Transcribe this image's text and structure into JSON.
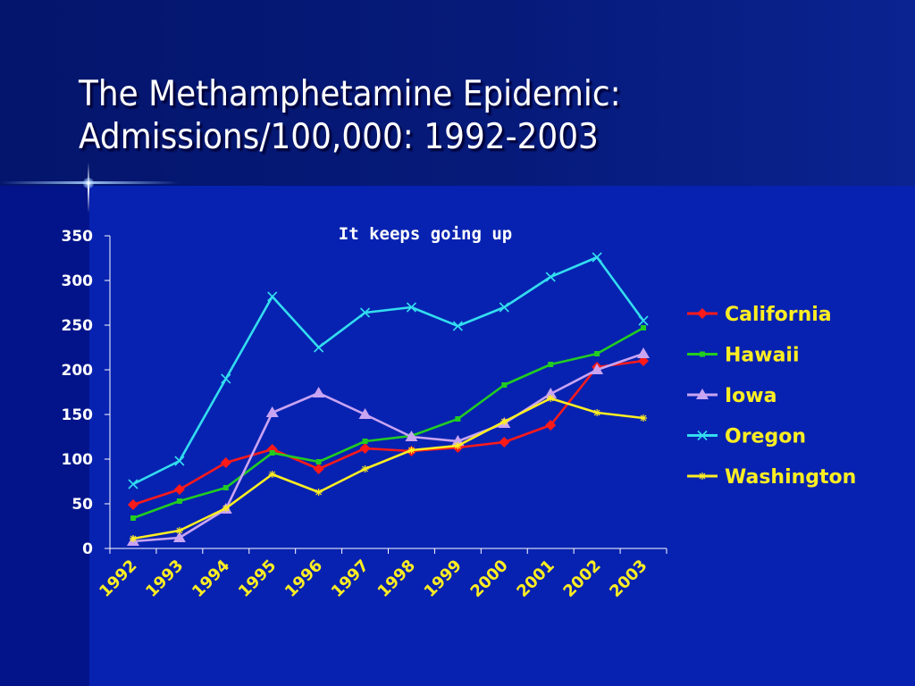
{
  "slide": {
    "title_line1": "The Methamphetamine Epidemic:",
    "title_line2": "Admissions/100,000: 1992-2003"
  },
  "chart_data": {
    "type": "line",
    "title": "It keeps going up",
    "xlabel": "",
    "ylabel": "",
    "categories": [
      "1992",
      "1993",
      "1994",
      "1995",
      "1996",
      "1997",
      "1998",
      "1999",
      "2000",
      "2001",
      "2002",
      "2003"
    ],
    "ylim": [
      0,
      350
    ],
    "yticks": [
      0,
      50,
      100,
      150,
      200,
      250,
      300,
      350
    ],
    "grid": false,
    "legend": "right",
    "series": [
      {
        "name": "California",
        "color": "#ff1a1a",
        "marker": "diamond",
        "values": [
          49,
          66,
          96,
          111,
          89,
          112,
          109,
          113,
          119,
          138,
          203,
          210
        ]
      },
      {
        "name": "Hawaii",
        "color": "#22cc22",
        "marker": "square",
        "values": [
          34,
          53,
          68,
          107,
          97,
          120,
          126,
          145,
          183,
          206,
          218,
          247
        ]
      },
      {
        "name": "Iowa",
        "color": "#c9a4f2",
        "marker": "triangle",
        "values": [
          8,
          12,
          44,
          152,
          174,
          150,
          125,
          120,
          140,
          173,
          200,
          218
        ]
      },
      {
        "name": "Oregon",
        "color": "#33ddf0",
        "marker": "x",
        "values": [
          72,
          98,
          190,
          282,
          225,
          264,
          270,
          249,
          270,
          304,
          326,
          255
        ]
      },
      {
        "name": "Washington",
        "color": "#ffee22",
        "marker": "star",
        "values": [
          11,
          20,
          45,
          83,
          63,
          89,
          110,
          115,
          142,
          168,
          152,
          146
        ]
      }
    ]
  }
}
